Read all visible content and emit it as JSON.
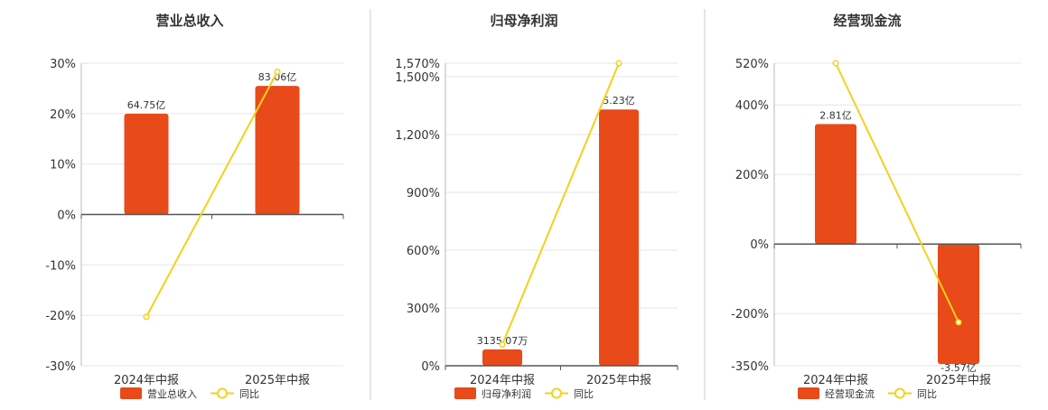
{
  "colors": {
    "bar": "#E84A1A",
    "line": "#F2D21B",
    "grid": "#e6e6e6",
    "axis": "#555555",
    "divider": "#cccccc"
  },
  "legend": {
    "line_label": "同比"
  },
  "chart_data": [
    {
      "type": "bar",
      "title": "营业总收入",
      "categories": [
        "2024年中报",
        "2025年中报"
      ],
      "ylim": [
        -30,
        30
      ],
      "yticks": [
        30,
        20,
        10,
        0,
        -10,
        -20,
        -30
      ],
      "ytick_labels": [
        "30%",
        "20%",
        "10%",
        "0%",
        "-10%",
        "-20%",
        "-30%"
      ],
      "series": [
        {
          "name": "营业总收入",
          "type": "bar",
          "values": [
            20,
            25.5
          ],
          "labels": [
            "64.75亿",
            "83.06亿"
          ]
        },
        {
          "name": "同比",
          "type": "line",
          "values": [
            -20.3,
            28.3
          ]
        }
      ]
    },
    {
      "type": "bar",
      "title": "归母净利润",
      "categories": [
        "2024年中报",
        "2025年中报"
      ],
      "ylim": [
        0,
        1570
      ],
      "yticks": [
        1570,
        1500,
        1200,
        900,
        600,
        300,
        0
      ],
      "ytick_labels": [
        "1,570%",
        "1,500%",
        "1,200%",
        "900%",
        "600%",
        "300%",
        "0%"
      ],
      "series": [
        {
          "name": "归母净利润",
          "type": "bar",
          "values": [
            85,
            1330
          ],
          "labels": [
            "3135.07万",
            "5.23亿"
          ]
        },
        {
          "name": "同比",
          "type": "line",
          "values": [
            110,
            1570
          ]
        }
      ]
    },
    {
      "type": "bar",
      "title": "经营现金流",
      "categories": [
        "2024年中报",
        "2025年中报"
      ],
      "ylim": [
        -350,
        520
      ],
      "yticks": [
        520,
        400,
        200,
        0,
        -200,
        -350
      ],
      "ytick_labels": [
        "520%",
        "400%",
        "200%",
        "0%",
        "-200%",
        "-350%"
      ],
      "series": [
        {
          "name": "经营现金流",
          "type": "bar",
          "values": [
            345,
            -345
          ],
          "labels": [
            "2.81亿",
            "-3.57亿"
          ]
        },
        {
          "name": "同比",
          "type": "line",
          "values": [
            520,
            -225
          ]
        }
      ]
    }
  ]
}
